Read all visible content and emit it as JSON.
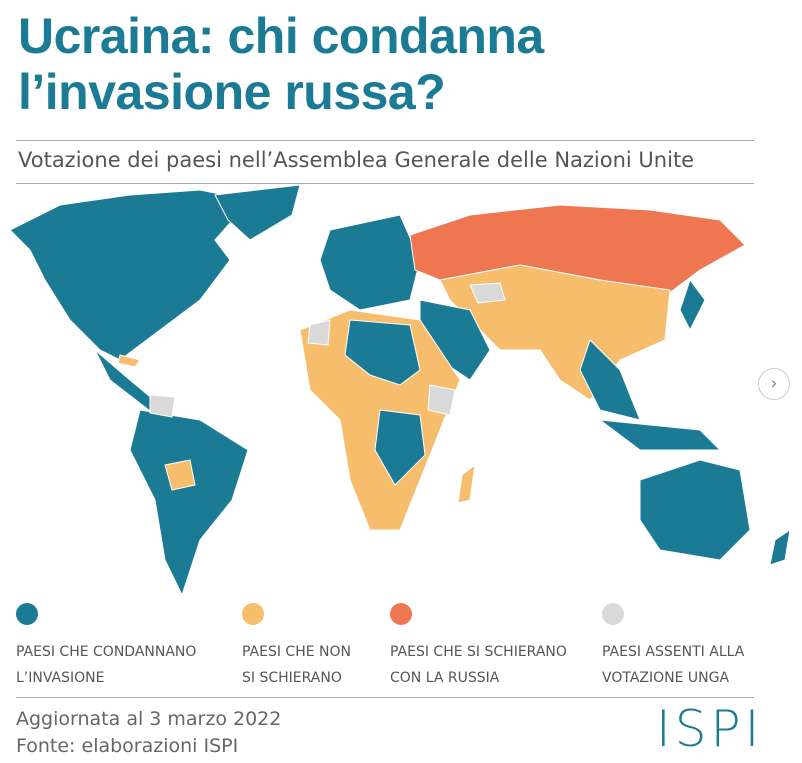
{
  "header": {
    "title_lines": [
      "Ucraina: chi condanna",
      "l’invasione russa?"
    ],
    "subtitle": "Votazione dei paesi nell’Assemblea Generale delle Nazioni Unite"
  },
  "legend": [
    {
      "color": "#1b7a94",
      "label_lines": [
        "PAESI CHE CONDANNANO",
        "L’INVASIONE"
      ]
    },
    {
      "color": "#f6bd6c",
      "label_lines": [
        "PAESI CHE NON",
        "SI SCHIERANO"
      ]
    },
    {
      "color": "#ee7651",
      "label_lines": [
        "PAESI CHE SI SCHIERANO",
        "CON LA RUSSIA"
      ]
    },
    {
      "color": "#d9d9d9",
      "label_lines": [
        "PAESI ASSENTI ALLA",
        "VOTAZIONE UNGA"
      ]
    }
  ],
  "footer": {
    "updated": "Aggiornata al 3 marzo 2022",
    "source": "Fonte: elaborazioni ISPI",
    "logo": "ISPI"
  }
}
